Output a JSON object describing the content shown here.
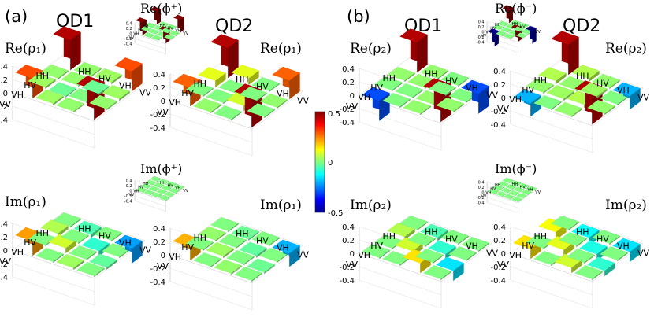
{
  "panels": [
    {
      "label": "(a)",
      "col_left": "QD1",
      "col_right": "QD2"
    },
    {
      "label": "(b)",
      "col_left": "QD1",
      "col_right": "QD2"
    }
  ],
  "axis_ticks": [
    "0.4",
    "0.2",
    "0",
    "-0.2",
    "-0.4"
  ],
  "basis_labels": [
    "HH",
    "HV",
    "VH",
    "VV"
  ],
  "colorbar": {
    "max_label": "0.5",
    "mid_label": "0",
    "min_label": "-0.5",
    "range": [
      -0.5,
      0.5
    ]
  },
  "chart_data": [
    {
      "type": "heatmap",
      "panel": "(a)",
      "title": "Re(ρ₁)",
      "column": "QD1",
      "part": "real",
      "rows": [
        "HH",
        "HV",
        "VH",
        "VV"
      ],
      "cols": [
        "HH",
        "HV",
        "VH",
        "VV"
      ],
      "values": [
        [
          0.45,
          0.02,
          0.03,
          0.3
        ],
        [
          0.02,
          0.02,
          -0.02,
          0.03
        ],
        [
          0.03,
          -0.02,
          0.0,
          0.02
        ],
        [
          0.3,
          0.03,
          0.02,
          0.45
        ]
      ]
    },
    {
      "type": "heatmap",
      "panel": "(a)",
      "title": "Re(ρ₁)",
      "column": "QD2",
      "part": "real",
      "rows": [
        "HH",
        "HV",
        "VH",
        "VV"
      ],
      "cols": [
        "HH",
        "HV",
        "VH",
        "VV"
      ],
      "values": [
        [
          0.45,
          0.1,
          0.0,
          0.28
        ],
        [
          0.1,
          0.0,
          0.0,
          0.02
        ],
        [
          0.0,
          0.0,
          0.08,
          0.0
        ],
        [
          0.28,
          0.02,
          0.0,
          0.45
        ]
      ]
    },
    {
      "type": "heatmap",
      "panel": "(a)",
      "title": "Re(ϕ⁺)",
      "part": "real",
      "inset": true,
      "rows": [
        "HH",
        "HV",
        "VH",
        "VV"
      ],
      "cols": [
        "HH",
        "HV",
        "VH",
        "VV"
      ],
      "values": [
        [
          0.5,
          0,
          0,
          0.5
        ],
        [
          0,
          0,
          0,
          0
        ],
        [
          0,
          0,
          0,
          0
        ],
        [
          0.5,
          0,
          0,
          0.5
        ]
      ]
    },
    {
      "type": "heatmap",
      "panel": "(a)",
      "title": "Im(ρ₁)",
      "column": "QD1",
      "part": "imaginary",
      "rows": [
        "HH",
        "HV",
        "VH",
        "VV"
      ],
      "cols": [
        "HH",
        "HV",
        "VH",
        "VV"
      ],
      "values": [
        [
          0.0,
          0.05,
          0.0,
          0.22
        ],
        [
          -0.05,
          0.0,
          0.08,
          0.0
        ],
        [
          0.0,
          -0.08,
          0.0,
          0.03
        ],
        [
          -0.22,
          0.0,
          -0.03,
          0.0
        ]
      ]
    },
    {
      "type": "heatmap",
      "panel": "(a)",
      "title": "Im(ρ₁)",
      "column": "QD2",
      "part": "imaginary",
      "rows": [
        "HH",
        "HV",
        "VH",
        "VV"
      ],
      "cols": [
        "HH",
        "HV",
        "VH",
        "VV"
      ],
      "values": [
        [
          0.0,
          0.02,
          0.0,
          0.2
        ],
        [
          -0.02,
          0.0,
          0.03,
          0.0
        ],
        [
          0.0,
          -0.03,
          0.0,
          0.02
        ],
        [
          -0.2,
          0.0,
          -0.02,
          0.0
        ]
      ]
    },
    {
      "type": "heatmap",
      "panel": "(a)",
      "title": "Im(ϕ⁺)",
      "part": "imaginary",
      "inset": true,
      "rows": [
        "HH",
        "HV",
        "VH",
        "VV"
      ],
      "cols": [
        "HH",
        "HV",
        "VH",
        "VV"
      ],
      "values": [
        [
          0,
          0,
          0,
          0
        ],
        [
          0,
          0,
          0,
          0
        ],
        [
          0,
          0,
          0,
          0
        ],
        [
          0,
          0,
          0,
          0
        ]
      ]
    },
    {
      "type": "heatmap",
      "panel": "(b)",
      "title": "Re(ρ₂)",
      "column": "QD1",
      "part": "real",
      "rows": [
        "HH",
        "HV",
        "VH",
        "VV"
      ],
      "cols": [
        "HH",
        "HV",
        "VH",
        "VV"
      ],
      "values": [
        [
          0.45,
          0.02,
          0.0,
          -0.3
        ],
        [
          0.02,
          0.02,
          0.0,
          0.0
        ],
        [
          0.0,
          0.0,
          0.02,
          0.02
        ],
        [
          -0.3,
          0.0,
          0.02,
          0.45
        ]
      ]
    },
    {
      "type": "heatmap",
      "panel": "(b)",
      "title": "Re(ρ₂)",
      "column": "QD2",
      "part": "real",
      "rows": [
        "HH",
        "HV",
        "VH",
        "VV"
      ],
      "cols": [
        "HH",
        "HV",
        "VH",
        "VV"
      ],
      "values": [
        [
          0.45,
          0.05,
          0.02,
          -0.2
        ],
        [
          0.05,
          0.02,
          0.03,
          0.0
        ],
        [
          0.02,
          0.03,
          0.05,
          0.02
        ],
        [
          -0.2,
          0.0,
          0.02,
          0.45
        ]
      ]
    },
    {
      "type": "heatmap",
      "panel": "(b)",
      "title": "Re(ϕ⁻)",
      "part": "real",
      "inset": true,
      "rows": [
        "HH",
        "HV",
        "VH",
        "VV"
      ],
      "cols": [
        "HH",
        "HV",
        "VH",
        "VV"
      ],
      "values": [
        [
          0.5,
          0,
          0,
          -0.5
        ],
        [
          0,
          0,
          0,
          0
        ],
        [
          0,
          0,
          0,
          0
        ],
        [
          -0.5,
          0,
          0,
          0.5
        ]
      ]
    },
    {
      "type": "heatmap",
      "panel": "(b)",
      "title": "Im(ρ₂)",
      "column": "QD1",
      "part": "imaginary",
      "rows": [
        "HH",
        "HV",
        "VH",
        "VV"
      ],
      "cols": [
        "HH",
        "HV",
        "VH",
        "VV"
      ],
      "values": [
        [
          0.0,
          0.05,
          0.0,
          0.0
        ],
        [
          -0.05,
          0.0,
          0.08,
          0.0
        ],
        [
          0.0,
          -0.08,
          0.0,
          0.15
        ],
        [
          0.0,
          0.0,
          -0.15,
          0.0
        ]
      ]
    },
    {
      "type": "heatmap",
      "panel": "(b)",
      "title": "Im(ρ₂)",
      "column": "QD2",
      "part": "imaginary",
      "rows": [
        "HH",
        "HV",
        "VH",
        "VV"
      ],
      "cols": [
        "HH",
        "HV",
        "VH",
        "VV"
      ],
      "values": [
        [
          0.0,
          0.12,
          0.0,
          0.15
        ],
        [
          -0.12,
          0.0,
          0.1,
          0.0
        ],
        [
          0.0,
          -0.1,
          0.0,
          0.08
        ],
        [
          -0.15,
          0.0,
          -0.08,
          0.0
        ]
      ]
    },
    {
      "type": "heatmap",
      "panel": "(b)",
      "title": "Im(ϕ⁻)",
      "part": "imaginary",
      "inset": true,
      "rows": [
        "HH",
        "HV",
        "VH",
        "VV"
      ],
      "cols": [
        "HH",
        "HV",
        "VH",
        "VV"
      ],
      "values": [
        [
          0,
          0,
          0,
          0
        ],
        [
          0,
          0,
          0,
          0
        ],
        [
          0,
          0,
          0,
          0
        ],
        [
          0,
          0,
          0,
          0
        ]
      ]
    }
  ]
}
